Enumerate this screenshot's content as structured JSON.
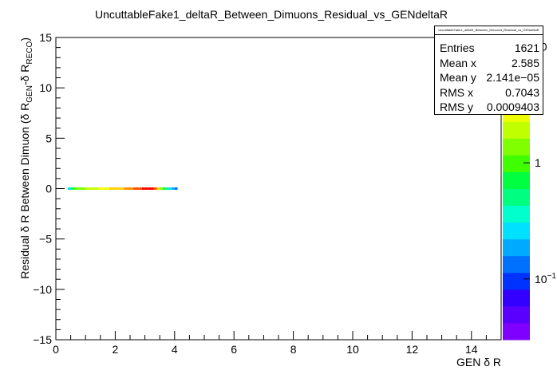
{
  "chart_data": {
    "type": "heatmap",
    "title": "UncuttableFake1_deltaR_Between_Dimuons_Residual_vs_GENdeltaR",
    "xlabel": "GEN δ R",
    "ylabel_main": "Residual δ R Between Dimuon (δ R",
    "ylabel_sub1": "GEN",
    "ylabel_mid": "-δ R",
    "ylabel_sub2": "RECO",
    "ylabel_end": ")",
    "xlim": [
      0,
      15
    ],
    "ylim": [
      -15,
      15
    ],
    "x_ticks": [
      "0",
      "2",
      "4",
      "6",
      "8",
      "10",
      "12",
      "14"
    ],
    "y_ticks": [
      "15",
      "10",
      "5",
      "0",
      "−5",
      "−10",
      "−15"
    ],
    "color_scale": "log",
    "colorbar_ticks": [
      "1",
      "10",
      "10"
    ],
    "colorbar_tick_exponents": [
      "",
      "",
      "−1"
    ],
    "grid": false,
    "points": [
      {
        "x": 0.45,
        "y": 0.0,
        "z": 0.3
      },
      {
        "x": 0.55,
        "y": 0.0,
        "z": 0.6
      },
      {
        "x": 0.65,
        "y": 0.0,
        "z": 0.9
      },
      {
        "x": 0.75,
        "y": 0.0,
        "z": 1.2
      },
      {
        "x": 0.85,
        "y": 0.0,
        "z": 1.5
      },
      {
        "x": 0.95,
        "y": 0.0,
        "z": 1.6
      },
      {
        "x": 1.05,
        "y": 0.0,
        "z": 1.8
      },
      {
        "x": 1.15,
        "y": 0.0,
        "z": 2.0
      },
      {
        "x": 1.25,
        "y": 0.0,
        "z": 2.1
      },
      {
        "x": 1.35,
        "y": 0.0,
        "z": 2.2
      },
      {
        "x": 1.45,
        "y": 0.0,
        "z": 2.4
      },
      {
        "x": 1.55,
        "y": 0.0,
        "z": 2.5
      },
      {
        "x": 1.65,
        "y": 0.0,
        "z": 2.7
      },
      {
        "x": 1.75,
        "y": 0.0,
        "z": 2.9
      },
      {
        "x": 1.85,
        "y": 0.0,
        "z": 3.2
      },
      {
        "x": 1.95,
        "y": 0.0,
        "z": 3.4
      },
      {
        "x": 2.05,
        "y": 0.0,
        "z": 3.6
      },
      {
        "x": 2.15,
        "y": 0.0,
        "z": 3.9
      },
      {
        "x": 2.25,
        "y": 0.0,
        "z": 4.3
      },
      {
        "x": 2.35,
        "y": 0.0,
        "z": 4.8
      },
      {
        "x": 2.45,
        "y": 0.0,
        "z": 5.2
      },
      {
        "x": 2.55,
        "y": 0.0,
        "z": 5.8
      },
      {
        "x": 2.65,
        "y": 0.0,
        "z": 6.5
      },
      {
        "x": 2.75,
        "y": 0.0,
        "z": 7.2
      },
      {
        "x": 2.85,
        "y": 0.0,
        "z": 8.0
      },
      {
        "x": 2.95,
        "y": 0.0,
        "z": 8.8
      },
      {
        "x": 3.05,
        "y": 0.0,
        "z": 9.5
      },
      {
        "x": 3.15,
        "y": 0.0,
        "z": 10.0
      },
      {
        "x": 3.25,
        "y": 0.0,
        "z": 9.0
      },
      {
        "x": 3.35,
        "y": 0.0,
        "z": 6.5
      },
      {
        "x": 3.45,
        "y": 0.0,
        "z": 3.5
      },
      {
        "x": 3.55,
        "y": 0.0,
        "z": 1.5
      },
      {
        "x": 3.65,
        "y": 0.0,
        "z": 0.8
      },
      {
        "x": 3.75,
        "y": 0.0,
        "z": 0.5
      },
      {
        "x": 3.85,
        "y": 0.0,
        "z": 0.3
      },
      {
        "x": 3.95,
        "y": 0.0,
        "z": 0.2
      },
      {
        "x": 4.05,
        "y": 0.0,
        "z": 0.15
      }
    ]
  },
  "stats": {
    "title": "UncuttableFake1_deltaR_Between_Dimuons_Residual_vs_GENdeltaR",
    "rows": [
      {
        "label": "Entries",
        "value": "1621"
      },
      {
        "label": "Mean x",
        "value": "2.585"
      },
      {
        "label": "Mean y",
        "value": "2.141e−05"
      },
      {
        "label": "RMS x",
        "value": "0.7043"
      },
      {
        "label": "RMS y",
        "value": "0.0009403"
      }
    ]
  },
  "colors": {
    "palette": [
      "#7f00ff",
      "#5a00ff",
      "#3300ff",
      "#0033ff",
      "#0070ff",
      "#00aaff",
      "#00e0ff",
      "#00ffcc",
      "#00ff80",
      "#00ff40",
      "#40ff00",
      "#80ff00",
      "#c0ff00",
      "#f0ff00",
      "#ffd000",
      "#ff9000",
      "#ff5000",
      "#ff0000"
    ]
  }
}
